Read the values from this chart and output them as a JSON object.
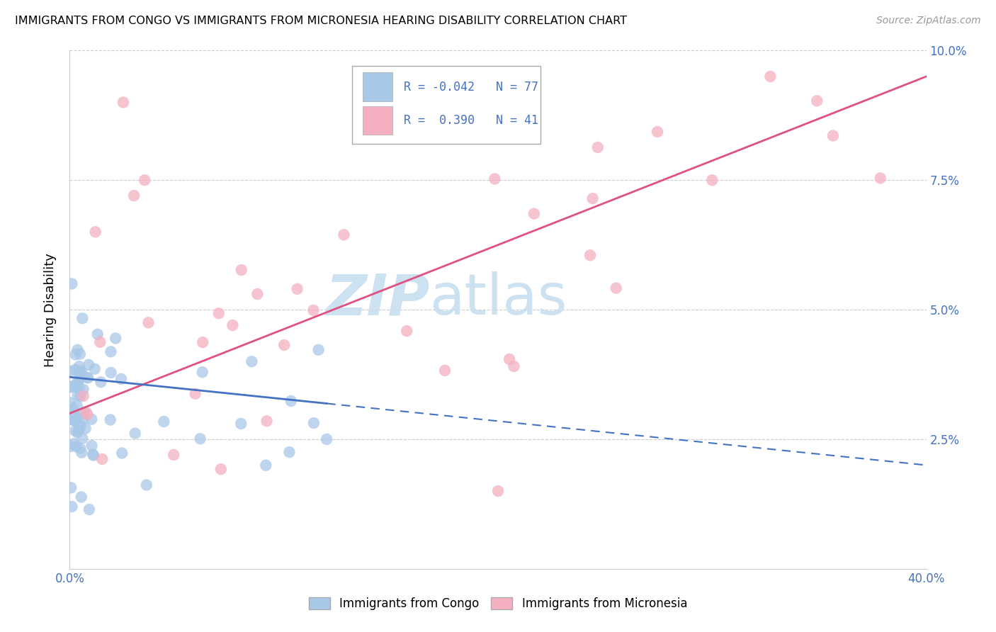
{
  "title": "IMMIGRANTS FROM CONGO VS IMMIGRANTS FROM MICRONESIA HEARING DISABILITY CORRELATION CHART",
  "source": "Source: ZipAtlas.com",
  "ylabel": "Hearing Disability",
  "xlim": [
    0.0,
    0.4
  ],
  "ylim": [
    0.0,
    0.1
  ],
  "congo_R": -0.042,
  "congo_N": 77,
  "micronesia_R": 0.39,
  "micronesia_N": 41,
  "congo_color": "#a8c8e8",
  "congo_line_color": "#4472c4",
  "micronesia_color": "#f4b0c0",
  "micronesia_line_color": "#e05080",
  "watermark_zip": "ZIP",
  "watermark_atlas": "atlas",
  "legend_label_congo": "Immigrants from Congo",
  "legend_label_micronesia": "Immigrants from Micronesia",
  "background_color": "#ffffff",
  "grid_color": "#cccccc",
  "congo_line_y0": 0.037,
  "congo_line_y1": 0.02,
  "micronesia_line_y0": 0.03,
  "micronesia_line_y1": 0.095
}
